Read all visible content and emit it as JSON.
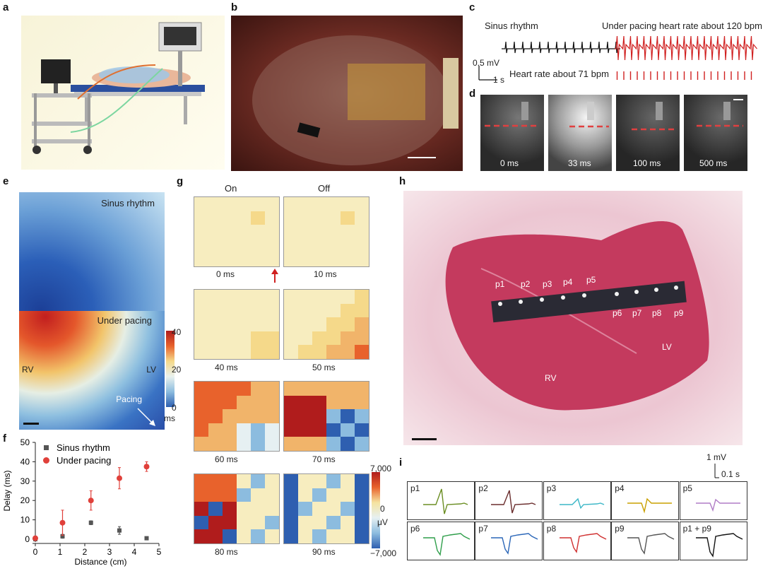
{
  "panels": {
    "a": "a",
    "b": "b",
    "c": "c",
    "d": "d",
    "e": "e",
    "f": "f",
    "g": "g",
    "h": "h",
    "i": "i"
  },
  "c": {
    "sinus_label": "Sinus rhythm",
    "pacing_label": "Under pacing heart rate about 120 bpm",
    "scale_mv": "0.5 mV",
    "scale_s": "1 s",
    "sinus_rate": "Heart rate about 71 bpm"
  },
  "d": {
    "times": [
      "0 ms",
      "33 ms",
      "100 ms",
      "500 ms"
    ]
  },
  "e": {
    "top_label": "Sinus rhythm",
    "bottom_label": "Under pacing",
    "rv": "RV",
    "lv": "LV",
    "pacing": "Pacing",
    "cbar_ticks": [
      "40",
      "20",
      "0"
    ],
    "cbar_unit": "ms"
  },
  "g": {
    "on": "On",
    "off": "Off",
    "times": [
      "0 ms",
      "10 ms",
      "40 ms",
      "50 ms",
      "60 ms",
      "70 ms",
      "80 ms",
      "90 ms"
    ],
    "cbar_ticks": [
      "7,000",
      "0",
      "−7,000"
    ],
    "cbar_unit": "μV"
  },
  "h": {
    "points_top": [
      "p1",
      "p2",
      "p3",
      "p4",
      "p5"
    ],
    "points_bottom": [
      "p6",
      "p7",
      "p8",
      "p9"
    ],
    "rv": "RV",
    "lv": "LV"
  },
  "i": {
    "scale_mv": "1 mV",
    "scale_s": "0.1 s",
    "labels": [
      "p1",
      "p2",
      "p3",
      "p4",
      "p5",
      "p6",
      "p7",
      "p8",
      "p9",
      "p1 + p9"
    ],
    "colors": [
      "#6b8e23",
      "#6b2e2e",
      "#3cb7c7",
      "#c9a000",
      "#b07cc6",
      "#2e9e4a",
      "#2a66b8",
      "#d03030",
      "#555555",
      "#111111"
    ]
  },
  "chart_data": {
    "type": "scatter",
    "title": "",
    "xlabel": "Distance (cm)",
    "ylabel": "Delay (ms)",
    "xlim": [
      0,
      5
    ],
    "ylim": [
      0,
      50
    ],
    "xticks": [
      "0",
      "1",
      "2",
      "3",
      "4",
      "5"
    ],
    "yticks": [
      "0",
      "10",
      "20",
      "30",
      "40",
      "50"
    ],
    "legend_position": "top-left",
    "series": [
      {
        "name": "Sinus rhythm",
        "color": "#555555",
        "marker": "square",
        "x": [
          0,
          1.1,
          2.25,
          3.4,
          4.5
        ],
        "y": [
          0,
          1.5,
          8.5,
          4.5,
          0.5
        ],
        "err": [
          0.5,
          1,
          1,
          2,
          0.5
        ]
      },
      {
        "name": "Under pacing",
        "color": "#e0403a",
        "marker": "circle",
        "x": [
          0,
          1.1,
          2.25,
          3.4,
          4.5
        ],
        "y": [
          0.5,
          8.5,
          20,
          31.5,
          37.5
        ],
        "err": [
          1,
          6.5,
          5,
          5.5,
          2.5
        ]
      }
    ]
  }
}
